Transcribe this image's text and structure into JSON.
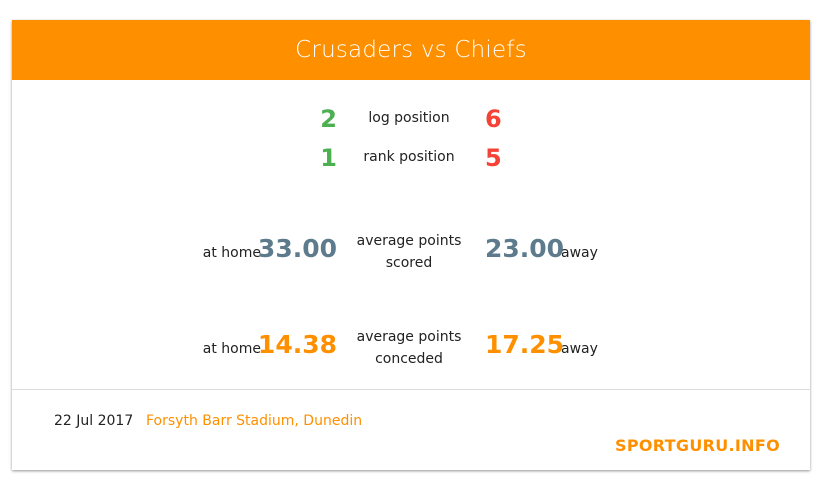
{
  "header": {
    "title": "Crusaders vs Chiefs"
  },
  "log_position": {
    "label": "log position",
    "home": "2",
    "away": "6"
  },
  "rank_position": {
    "label": "rank position",
    "home": "1",
    "away": "5"
  },
  "points_scored": {
    "label_line1": "average points",
    "label_line2": "scored",
    "home_label": "at home",
    "home_value": "33.00",
    "away_value": "23.00",
    "away_label": "away"
  },
  "points_conceded": {
    "label_line1": "average points",
    "label_line2": "conceded",
    "home_label": "at home",
    "home_value": "14.38",
    "away_value": "17.25",
    "away_label": "away"
  },
  "footer": {
    "date": "22 Jul 2017",
    "venue": "Forsyth Barr Stadium, Dunedin",
    "brand": "SPORTGURU.INFO"
  },
  "colors": {
    "accent": "#fe9000",
    "home_rank": "#4caf50",
    "away_rank": "#f44336",
    "scored": "#5d7b8c"
  }
}
